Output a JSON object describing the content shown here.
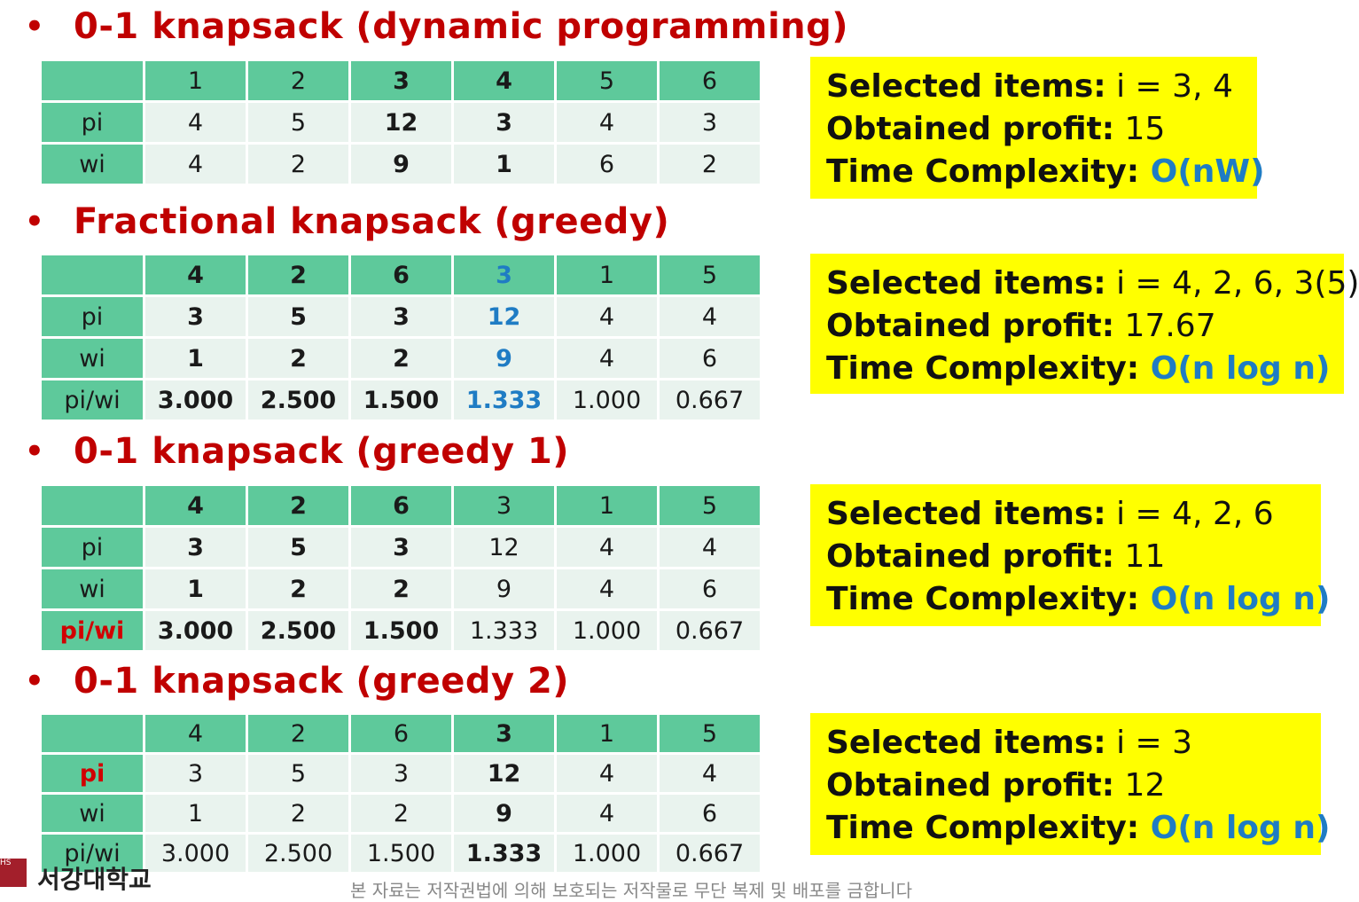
{
  "sections": [
    {
      "heading": "0-1 knapsack (dynamic programming)",
      "header_row": [
        {
          "t": "1",
          "s": ""
        },
        {
          "t": "2",
          "s": ""
        },
        {
          "t": "3",
          "s": "b"
        },
        {
          "t": "4",
          "s": "b"
        },
        {
          "t": "5",
          "s": ""
        },
        {
          "t": "6",
          "s": ""
        }
      ],
      "rows": [
        {
          "label": "pi",
          "label_style": "",
          "cells": [
            {
              "t": "4",
              "s": ""
            },
            {
              "t": "5",
              "s": ""
            },
            {
              "t": "12",
              "s": "b"
            },
            {
              "t": "3",
              "s": "b"
            },
            {
              "t": "4",
              "s": ""
            },
            {
              "t": "3",
              "s": ""
            }
          ]
        },
        {
          "label": "wi",
          "label_style": "",
          "cells": [
            {
              "t": "4",
              "s": ""
            },
            {
              "t": "2",
              "s": ""
            },
            {
              "t": "9",
              "s": "b"
            },
            {
              "t": "1",
              "s": "b"
            },
            {
              "t": "6",
              "s": ""
            },
            {
              "t": "2",
              "s": ""
            }
          ]
        }
      ],
      "summary": {
        "selected_label": "Selected items:",
        "selected_value": " i = 3, 4",
        "profit_label": "Obtained profit:",
        "profit_value": " 15",
        "complexity_label": "Time Complexity:",
        "complexity_value": " O(nW)"
      }
    },
    {
      "heading": "Fractional knapsack (greedy)",
      "header_row": [
        {
          "t": "4",
          "s": "b"
        },
        {
          "t": "2",
          "s": "b"
        },
        {
          "t": "6",
          "s": "b"
        },
        {
          "t": "3",
          "s": "blue"
        },
        {
          "t": "1",
          "s": ""
        },
        {
          "t": "5",
          "s": ""
        }
      ],
      "rows": [
        {
          "label": "pi",
          "label_style": "",
          "cells": [
            {
              "t": "3",
              "s": "b"
            },
            {
              "t": "5",
              "s": "b"
            },
            {
              "t": "3",
              "s": "b"
            },
            {
              "t": "12",
              "s": "blue"
            },
            {
              "t": "4",
              "s": ""
            },
            {
              "t": "4",
              "s": ""
            }
          ]
        },
        {
          "label": "wi",
          "label_style": "",
          "cells": [
            {
              "t": "1",
              "s": "b"
            },
            {
              "t": "2",
              "s": "b"
            },
            {
              "t": "2",
              "s": "b"
            },
            {
              "t": "9",
              "s": "blue"
            },
            {
              "t": "4",
              "s": ""
            },
            {
              "t": "6",
              "s": ""
            }
          ]
        },
        {
          "label": "pi/wi",
          "label_style": "",
          "cells": [
            {
              "t": "3.000",
              "s": "b"
            },
            {
              "t": "2.500",
              "s": "b"
            },
            {
              "t": "1.500",
              "s": "b"
            },
            {
              "t": "1.333",
              "s": "blue"
            },
            {
              "t": "1.000",
              "s": ""
            },
            {
              "t": "0.667",
              "s": ""
            }
          ]
        }
      ],
      "summary": {
        "selected_label": "Selected items:",
        "selected_value": " i = 4, 2, 6, 3(5)",
        "profit_label": "Obtained profit:",
        "profit_value": " 17.67",
        "complexity_label": "Time Complexity:",
        "complexity_value": " O(n log n)"
      }
    },
    {
      "heading": "0-1 knapsack (greedy 1)",
      "header_row": [
        {
          "t": "4",
          "s": "b"
        },
        {
          "t": "2",
          "s": "b"
        },
        {
          "t": "6",
          "s": "b"
        },
        {
          "t": "3",
          "s": ""
        },
        {
          "t": "1",
          "s": ""
        },
        {
          "t": "5",
          "s": ""
        }
      ],
      "rows": [
        {
          "label": "pi",
          "label_style": "",
          "cells": [
            {
              "t": "3",
              "s": "b"
            },
            {
              "t": "5",
              "s": "b"
            },
            {
              "t": "3",
              "s": "b"
            },
            {
              "t": "12",
              "s": ""
            },
            {
              "t": "4",
              "s": ""
            },
            {
              "t": "4",
              "s": ""
            }
          ]
        },
        {
          "label": "wi",
          "label_style": "",
          "cells": [
            {
              "t": "1",
              "s": "b"
            },
            {
              "t": "2",
              "s": "b"
            },
            {
              "t": "2",
              "s": "b"
            },
            {
              "t": "9",
              "s": ""
            },
            {
              "t": "4",
              "s": ""
            },
            {
              "t": "6",
              "s": ""
            }
          ]
        },
        {
          "label": "pi/wi",
          "label_style": "red",
          "cells": [
            {
              "t": "3.000",
              "s": "b"
            },
            {
              "t": "2.500",
              "s": "b"
            },
            {
              "t": "1.500",
              "s": "b"
            },
            {
              "t": "1.333",
              "s": ""
            },
            {
              "t": "1.000",
              "s": ""
            },
            {
              "t": "0.667",
              "s": ""
            }
          ]
        }
      ],
      "summary": {
        "selected_label": "Selected items:",
        "selected_value": " i = 4, 2, 6",
        "profit_label": "Obtained profit:",
        "profit_value": " 11",
        "complexity_label": "Time Complexity:",
        "complexity_value": " O(n log n)"
      }
    },
    {
      "heading": "0-1 knapsack (greedy 2)",
      "header_row": [
        {
          "t": "4",
          "s": ""
        },
        {
          "t": "2",
          "s": ""
        },
        {
          "t": "6",
          "s": ""
        },
        {
          "t": "3",
          "s": "b"
        },
        {
          "t": "1",
          "s": ""
        },
        {
          "t": "5",
          "s": ""
        }
      ],
      "rows": [
        {
          "label": "pi",
          "label_style": "red",
          "cells": [
            {
              "t": "3",
              "s": ""
            },
            {
              "t": "5",
              "s": ""
            },
            {
              "t": "3",
              "s": ""
            },
            {
              "t": "12",
              "s": "b"
            },
            {
              "t": "4",
              "s": ""
            },
            {
              "t": "4",
              "s": ""
            }
          ]
        },
        {
          "label": "wi",
          "label_style": "",
          "cells": [
            {
              "t": "1",
              "s": ""
            },
            {
              "t": "2",
              "s": ""
            },
            {
              "t": "2",
              "s": ""
            },
            {
              "t": "9",
              "s": "b"
            },
            {
              "t": "4",
              "s": ""
            },
            {
              "t": "6",
              "s": ""
            }
          ]
        },
        {
          "label": "pi/wi",
          "label_style": "",
          "cells": [
            {
              "t": "3.000",
              "s": ""
            },
            {
              "t": "2.500",
              "s": ""
            },
            {
              "t": "1.500",
              "s": ""
            },
            {
              "t": "1.333",
              "s": "b"
            },
            {
              "t": "1.000",
              "s": ""
            },
            {
              "t": "0.667",
              "s": ""
            }
          ]
        }
      ],
      "summary": {
        "selected_label": "Selected items:",
        "selected_value": " i = 3",
        "profit_label": "Obtained profit:",
        "profit_value": " 12",
        "complexity_label": "Time Complexity:",
        "complexity_value": " O(n log n)"
      }
    }
  ],
  "bullet_glyph": "•",
  "footer": {
    "logo_text": "HS",
    "university": "서강대학교",
    "note": "본 자료는 저작권법에 의해 보호되는 저작물로 무단 복제 및 배포를 금합니다"
  },
  "colors": {
    "heading": "#c00000",
    "table_header": "#5ec99b",
    "table_body": "#e9f3ee",
    "summary_bg": "#ffff00",
    "highlight_blue": "#1f7cc4",
    "highlight_red": "#d10000"
  }
}
